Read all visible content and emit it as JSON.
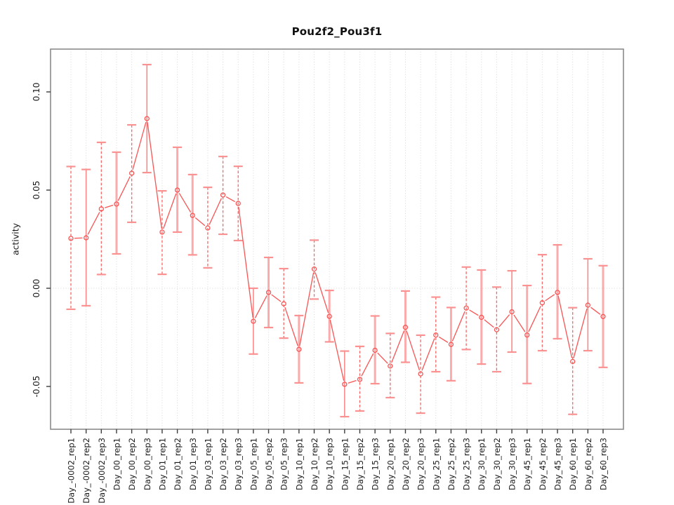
{
  "chart_data": {
    "type": "line",
    "title": "Pou2f2_Pou3f1",
    "ylabel": "activity",
    "xlabel": "",
    "legend": "none",
    "grid": {
      "vertical_dotted_per_category": true,
      "horizontal_zero_line_dotted": true
    },
    "ylim": [
      -0.0718,
      0.1218
    ],
    "yticks": [
      -0.05,
      0.0,
      0.05,
      0.1
    ],
    "ytick_labels": [
      "-0.05",
      "0.00",
      "0.05",
      "0.10"
    ],
    "categories": [
      "Day_-0002_rep1",
      "Day_-0002_rep2",
      "Day_-0002_rep3",
      "Day_00_rep1",
      "Day_00_rep2",
      "Day_00_rep3",
      "Day_01_rep1",
      "Day_01_rep2",
      "Day_01_rep3",
      "Day_03_rep1",
      "Day_03_rep2",
      "Day_03_rep3",
      "Day_05_rep1",
      "Day_05_rep2",
      "Day_05_rep3",
      "Day_10_rep1",
      "Day_10_rep2",
      "Day_10_rep3",
      "Day_15_rep1",
      "Day_15_rep2",
      "Day_15_rep3",
      "Day_20_rep1",
      "Day_20_rep2",
      "Day_20_rep3",
      "Day_25_rep1",
      "Day_25_rep2",
      "Day_25_rep3",
      "Day_30_rep1",
      "Day_30_rep2",
      "Day_30_rep3",
      "Day_45_rep1",
      "Day_45_rep2",
      "Day_45_rep3",
      "Day_60_rep1",
      "Day_60_rep2",
      "Day_60_rep3"
    ],
    "series": [
      {
        "name": "activity",
        "marker": "open-circle",
        "values": [
          0.0254,
          0.0257,
          0.0404,
          0.0429,
          0.0586,
          0.0864,
          0.0286,
          0.05,
          0.0371,
          0.0307,
          0.0475,
          0.0432,
          -0.0168,
          -0.0021,
          -0.0079,
          -0.0311,
          0.0098,
          -0.0143,
          -0.0489,
          -0.0464,
          -0.0316,
          -0.0396,
          -0.0199,
          -0.0436,
          -0.0238,
          -0.0286,
          -0.0101,
          -0.0148,
          -0.0211,
          -0.012,
          -0.0238,
          -0.0074,
          -0.0021,
          -0.0373,
          -0.0086,
          -0.0144
        ],
        "error_low": [
          -0.0107,
          -0.0089,
          0.007,
          0.0175,
          0.0336,
          0.0589,
          0.0071,
          0.0286,
          0.017,
          0.0104,
          0.0275,
          0.0243,
          -0.0335,
          -0.02,
          -0.0254,
          -0.0482,
          -0.0055,
          -0.0273,
          -0.0654,
          -0.0625,
          -0.0486,
          -0.0557,
          -0.0377,
          -0.0636,
          -0.0425,
          -0.0471,
          -0.0312,
          -0.0386,
          -0.0425,
          -0.0325,
          -0.0485,
          -0.0318,
          -0.0257,
          -0.0642,
          -0.0318,
          -0.0403
        ],
        "error_high": [
          0.062,
          0.0605,
          0.0743,
          0.0693,
          0.0832,
          0.1139,
          0.0496,
          0.0718,
          0.0579,
          0.0514,
          0.0671,
          0.0621,
          0.0,
          0.0157,
          0.01,
          -0.0139,
          0.0245,
          -0.0011,
          -0.032,
          -0.0296,
          -0.0141,
          -0.023,
          -0.0014,
          -0.0239,
          -0.0045,
          -0.0098,
          0.0108,
          0.0093,
          0.0006,
          0.0089,
          0.0014,
          0.0171,
          0.0221,
          -0.0099,
          0.015,
          0.0115
        ],
        "bar_styles": [
          "dashed",
          "solid",
          "dashed",
          "solid-thick",
          "dashed",
          "solid",
          "dashed",
          "solid-thick",
          "solid-thick",
          "dashed",
          "dashed",
          "dashed",
          "solid",
          "solid-thick",
          "dashed",
          "solid-thick",
          "dashed",
          "solid-thick",
          "solid",
          "dashed",
          "solid-thick",
          "dashed",
          "solid-thick",
          "dashed",
          "dashed",
          "solid-thick",
          "dashed",
          "solid-thick",
          "dashed",
          "solid",
          "solid-thick",
          "dashed",
          "solid-thick",
          "dashed",
          "solid",
          "solid-thick"
        ]
      }
    ],
    "colors": {
      "line": "#f85555",
      "point": "#f85555",
      "errorbar_dashed": "#f76565",
      "errorbar_solid": "#fa8a8a",
      "errorbar_thick": "#fbabab",
      "errorbar_cap": "#fa9292",
      "grid": "#d8d8d8",
      "box": "#8b8b8b",
      "tick": "#3d3d3d",
      "text": "#1a1a1a",
      "background": "#ffffff"
    }
  }
}
